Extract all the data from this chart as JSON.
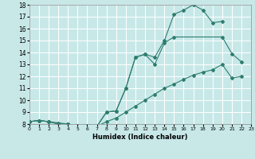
{
  "line1_x": [
    0,
    1,
    2,
    3,
    4,
    5,
    6,
    7,
    8,
    9,
    10,
    11,
    12,
    13,
    14,
    15,
    16,
    17,
    18,
    19,
    20
  ],
  "line1_y": [
    8.2,
    8.3,
    8.2,
    8.1,
    8.0,
    7.85,
    7.85,
    7.8,
    9.0,
    9.1,
    11.0,
    13.6,
    13.85,
    13.6,
    15.0,
    17.2,
    17.55,
    18.0,
    17.55,
    16.5,
    16.6
  ],
  "line2_x": [
    0,
    1,
    2,
    3,
    4,
    5,
    6,
    7,
    8,
    9,
    10,
    11,
    12,
    13,
    14,
    15,
    20,
    21,
    22
  ],
  "line2_y": [
    8.2,
    8.3,
    8.2,
    8.0,
    8.0,
    7.85,
    7.8,
    7.8,
    9.0,
    9.1,
    11.0,
    13.6,
    13.85,
    13.0,
    14.8,
    15.3,
    15.3,
    13.9,
    13.2
  ],
  "line3_x": [
    0,
    1,
    2,
    3,
    4,
    5,
    6,
    7,
    8,
    9,
    10,
    11,
    12,
    13,
    14,
    15,
    16,
    17,
    18,
    19,
    20,
    21,
    22
  ],
  "line3_y": [
    8.2,
    8.3,
    8.2,
    8.0,
    8.0,
    7.85,
    7.8,
    7.8,
    8.2,
    8.5,
    9.0,
    9.5,
    10.0,
    10.5,
    11.0,
    11.35,
    11.75,
    12.1,
    12.35,
    12.55,
    13.0,
    11.85,
    12.0
  ],
  "color": "#2e7d6e",
  "bg_color": "#c8e8e8",
  "grid_color": "#ffffff",
  "xlabel": "Humidex (Indice chaleur)",
  "ylim": [
    8,
    18
  ],
  "xlim": [
    0,
    23
  ],
  "yticks": [
    8,
    9,
    10,
    11,
    12,
    13,
    14,
    15,
    16,
    17,
    18
  ],
  "xticks": [
    0,
    1,
    2,
    3,
    4,
    5,
    6,
    7,
    8,
    9,
    10,
    11,
    12,
    13,
    14,
    15,
    16,
    17,
    18,
    19,
    20,
    21,
    22,
    23
  ]
}
